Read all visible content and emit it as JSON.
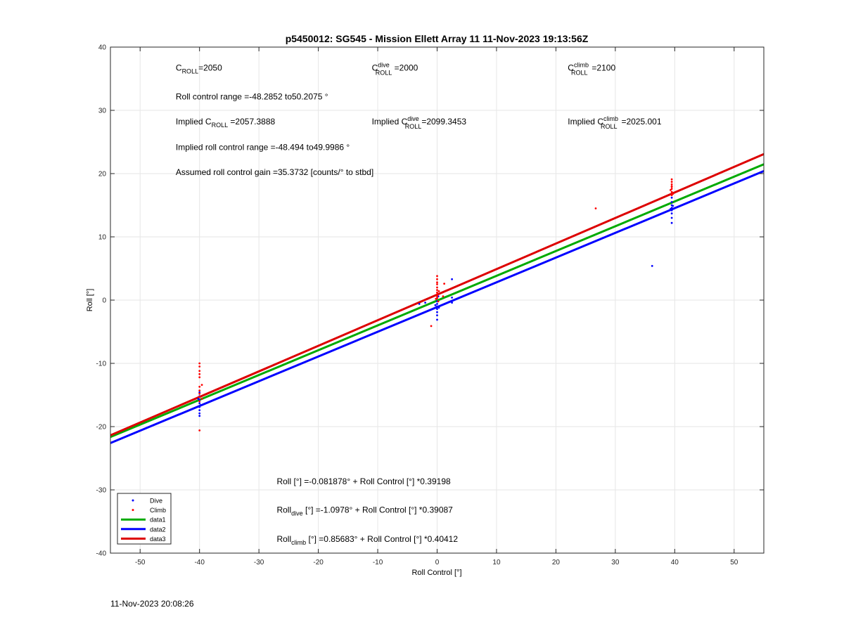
{
  "chart_data": {
    "type": "scatter",
    "title": "p5450012: SG545 - Mission Ellett Array 11 11-Nov-2023 19:13:56Z",
    "xlabel": "Roll Control [°]",
    "ylabel": "Roll [°]",
    "xlim": [
      -55,
      55
    ],
    "ylim": [
      -40,
      40
    ],
    "xticks": [
      -50,
      -40,
      -30,
      -20,
      -10,
      0,
      10,
      20,
      30,
      40,
      50
    ],
    "yticks": [
      -40,
      -30,
      -20,
      -10,
      0,
      10,
      20,
      30,
      40
    ],
    "grid": true,
    "legend_position": "bottom-left",
    "series": [
      {
        "name": "Dive",
        "kind": "points",
        "color": "#0000ff",
        "x": [
          -40,
          -40,
          -40,
          -40,
          -40,
          -40,
          -40,
          -40,
          -39.8,
          -40.2,
          -3,
          -2,
          0,
          0,
          0,
          0,
          0,
          0,
          0,
          0,
          0.3,
          -0.3,
          0.2,
          2.5,
          2.5,
          2.5,
          36.2,
          39.5,
          39.5,
          39.5,
          39.5,
          39.5,
          39.5,
          39.5,
          39.5,
          39.3,
          39.7
        ],
        "y": [
          -14.6,
          -15.2,
          -15.8,
          -16.3,
          -16.9,
          -17.4,
          -17.9,
          -18.3,
          -16.6,
          -15.6,
          -0.6,
          -0.4,
          0.3,
          -0.2,
          -0.6,
          -1,
          -1.4,
          -1.9,
          -2.4,
          -3.1,
          -1.2,
          -0.8,
          0.6,
          0.4,
          -0.4,
          3.3,
          5.4,
          12.2,
          13,
          13.7,
          14.2,
          14.6,
          15,
          15.5,
          16.2,
          14.4,
          14.9
        ]
      },
      {
        "name": "Climb",
        "kind": "points",
        "color": "#ff0000",
        "x": [
          -40,
          -40,
          -40,
          -40,
          -40,
          -40,
          -40,
          -40,
          -40,
          -40,
          -40,
          -39.6,
          -39.6,
          -1,
          0,
          0,
          0,
          0,
          0,
          0,
          0,
          0,
          0,
          0,
          0.3,
          0.2,
          -0.2,
          1,
          1.2,
          26.7,
          39.5,
          39.5,
          39.5,
          39.5,
          39.5,
          39.5,
          39.5,
          39.5,
          39.3,
          39.7
        ],
        "y": [
          -20.6,
          -14.8,
          -14.3,
          -13.7,
          -12.2,
          -11.7,
          -11.2,
          -10.5,
          -10,
          -15.3,
          -16,
          -13.4,
          -15.6,
          -4.1,
          3.8,
          3.3,
          2.8,
          2.5,
          2,
          1.6,
          1.2,
          0.9,
          0.6,
          0.3,
          1.4,
          -0.2,
          0.2,
          0.6,
          2.6,
          14.5,
          17.1,
          17.6,
          18,
          18.3,
          18.7,
          19.1,
          16.6,
          17.9,
          17.4,
          16.8
        ]
      },
      {
        "name": "data1",
        "kind": "line",
        "color": "#00aa00",
        "intercept": -0.081878,
        "slope": 0.39198
      },
      {
        "name": "data2",
        "kind": "line",
        "color": "#0000ff",
        "intercept": -1.0978,
        "slope": 0.39087
      },
      {
        "name": "data3",
        "kind": "line",
        "color": "#dd0000",
        "intercept": 0.85683,
        "slope": 0.40412
      }
    ],
    "annotations": [
      {
        "id": "c-roll",
        "x": -44,
        "y": 36.3,
        "parts": [
          [
            "C",
            ""
          ],
          [
            "ROLL",
            "sub"
          ],
          [
            "=2050",
            ""
          ]
        ]
      },
      {
        "id": "c-roll-dive",
        "x": -11,
        "y": 36.3,
        "parts": [
          [
            "C",
            ""
          ],
          [
            "dive",
            "sup"
          ],
          [
            "ROLL",
            "sub"
          ],
          [
            " =2000",
            ""
          ]
        ]
      },
      {
        "id": "c-roll-climb",
        "x": 22,
        "y": 36.3,
        "parts": [
          [
            "C",
            ""
          ],
          [
            "climb",
            "sup"
          ],
          [
            "ROLL",
            "sub"
          ],
          [
            " =2100",
            ""
          ]
        ]
      },
      {
        "id": "roll-control-range",
        "x": -44,
        "y": 31.7,
        "parts": [
          [
            "Roll control range =-48.2852 to50.2075 °",
            ""
          ]
        ]
      },
      {
        "id": "implied-c-roll",
        "x": -44,
        "y": 27.8,
        "parts": [
          [
            "Implied C",
            ""
          ],
          [
            "ROLL",
            "sub"
          ],
          [
            " =2057.3888",
            ""
          ]
        ]
      },
      {
        "id": "implied-c-roll-dive",
        "x": -11,
        "y": 27.8,
        "parts": [
          [
            "Implied C",
            ""
          ],
          [
            "dive",
            "sup"
          ],
          [
            "ROLL",
            "sub"
          ],
          [
            "=2099.3453",
            ""
          ]
        ]
      },
      {
        "id": "implied-c-roll-climb",
        "x": 22,
        "y": 27.8,
        "parts": [
          [
            "Implied C",
            ""
          ],
          [
            "climb",
            "sup"
          ],
          [
            "ROLL",
            "sub"
          ],
          [
            " =2025.001",
            ""
          ]
        ]
      },
      {
        "id": "implied-roll-control-range",
        "x": -44,
        "y": 23.7,
        "parts": [
          [
            "Implied roll control range =-48.494 to49.9986 °",
            ""
          ]
        ]
      },
      {
        "id": "assumed-gain",
        "x": -44,
        "y": 19.8,
        "parts": [
          [
            "Assumed roll control gain =35.3732 [counts/° to stbd]",
            ""
          ]
        ]
      },
      {
        "id": "fit-roll",
        "x": -27,
        "y": -29.1,
        "parts": [
          [
            "Roll [°] =-0.081878° + Roll Control [°] *0.39198",
            ""
          ]
        ]
      },
      {
        "id": "fit-roll-dive",
        "x": -27,
        "y": -33.6,
        "parts": [
          [
            "Roll",
            ""
          ],
          [
            "dive",
            "sub"
          ],
          [
            " [°] =-1.0978° + Roll Control [°] *0.39087",
            ""
          ]
        ]
      },
      {
        "id": "fit-roll-climb",
        "x": -27,
        "y": -38.2,
        "parts": [
          [
            "Roll",
            ""
          ],
          [
            "climb",
            "sub"
          ],
          [
            " [°] =0.85683° + Roll Control [°] *0.40412",
            ""
          ]
        ]
      }
    ]
  },
  "footer": {
    "timestamp": "11-Nov-2023 20:08:26"
  }
}
